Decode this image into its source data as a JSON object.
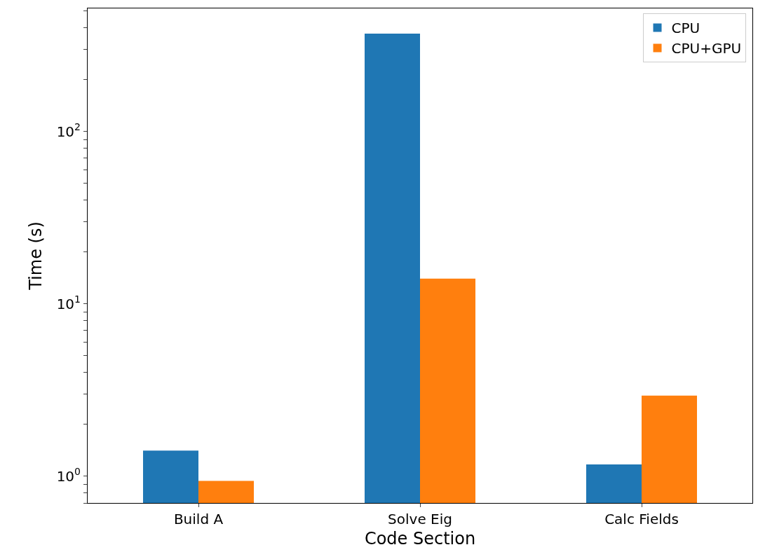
{
  "chart_data": {
    "type": "bar",
    "xlabel": "Code Section",
    "ylabel": "Time (s)",
    "categories": [
      "Build A",
      "Solve Eig",
      "Calc Fields"
    ],
    "series": [
      {
        "name": "CPU",
        "color": "#1f77b4",
        "values": [
          1.41,
          370,
          1.17
        ]
      },
      {
        "name": "CPU+GPU",
        "color": "#ff7f0e",
        "values": [
          0.94,
          14.0,
          2.94
        ]
      }
    ],
    "log": true,
    "ylim": [
      0.7,
      518
    ],
    "yticks": [
      {
        "value": 0.7,
        "label": null
      },
      {
        "value": 0.8,
        "label": null
      },
      {
        "value": 0.9,
        "label": null
      },
      {
        "value": 1,
        "label": "10$^{0}$"
      },
      {
        "value": 2,
        "label": null
      },
      {
        "value": 3,
        "label": null
      },
      {
        "value": 4,
        "label": null
      },
      {
        "value": 5,
        "label": null
      },
      {
        "value": 6,
        "label": null
      },
      {
        "value": 7,
        "label": null
      },
      {
        "value": 8,
        "label": null
      },
      {
        "value": 9,
        "label": null
      },
      {
        "value": 10,
        "label": "10$^{1}$"
      },
      {
        "value": 20,
        "label": null
      },
      {
        "value": 30,
        "label": null
      },
      {
        "value": 40,
        "label": null
      },
      {
        "value": 50,
        "label": null
      },
      {
        "value": 60,
        "label": null
      },
      {
        "value": 70,
        "label": null
      },
      {
        "value": 80,
        "label": null
      },
      {
        "value": 90,
        "label": null
      },
      {
        "value": 100,
        "label": "10$^{2}$"
      },
      {
        "value": 200,
        "label": null
      },
      {
        "value": 300,
        "label": null
      },
      {
        "value": 400,
        "label": null
      },
      {
        "value": 500,
        "label": null
      }
    ],
    "legend": "top right"
  }
}
